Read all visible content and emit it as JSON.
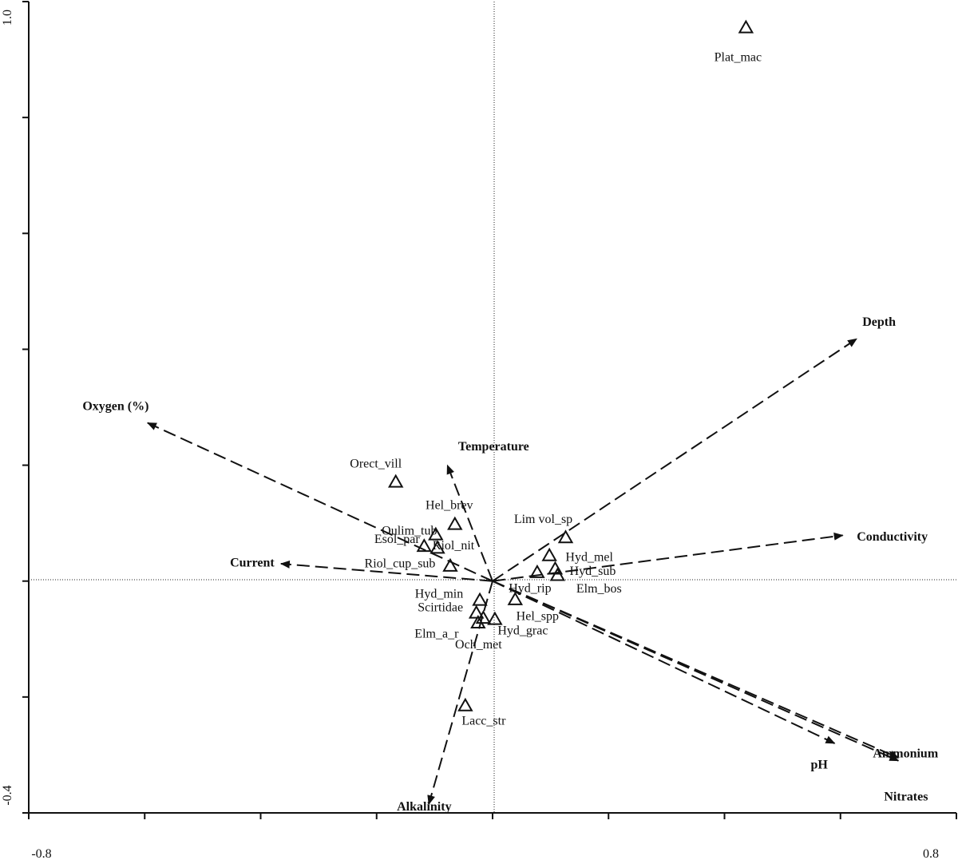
{
  "chart_data": {
    "type": "scatter",
    "title": "",
    "xlabel": "",
    "ylabel": "",
    "xlim": [
      -0.8,
      0.8
    ],
    "ylim": [
      -0.4,
      1.0
    ],
    "x_tick_labels": [
      "-0.8",
      "0.8"
    ],
    "y_tick_labels": [
      "1.0",
      "-0.4"
    ],
    "grid": false,
    "reference_lines": {
      "x": 0,
      "y": 0,
      "style": "dotted"
    },
    "species": [
      {
        "name": "Plat_mac",
        "x": 0.437,
        "y": 0.955
      },
      {
        "name": "Orect_vill",
        "x": -0.167,
        "y": 0.171
      },
      {
        "name": "Hel_brev",
        "x": -0.065,
        "y": 0.098
      },
      {
        "name": "Oulim_tub",
        "x": -0.098,
        "y": 0.08
      },
      {
        "name": "Esol_par",
        "x": -0.118,
        "y": 0.06
      },
      {
        "name": "Riol_nit",
        "x": -0.095,
        "y": 0.057
      },
      {
        "name": "Riol_cup_sub",
        "x": -0.073,
        "y": 0.026
      },
      {
        "name": "Lim vol_sp",
        "x": 0.126,
        "y": 0.075
      },
      {
        "name": "Hyd_mel",
        "x": 0.098,
        "y": 0.044
      },
      {
        "name": "Hyd_sub",
        "x": 0.108,
        "y": 0.021
      },
      {
        "name": "Hyd_rip",
        "x": 0.077,
        "y": 0.015
      },
      {
        "name": "Elm_bos",
        "x": 0.112,
        "y": 0.01
      },
      {
        "name": "Hel_spp",
        "x": 0.039,
        "y": -0.032
      },
      {
        "name": "Hyd_min",
        "x": -0.022,
        "y": -0.033
      },
      {
        "name": "Scirtidae",
        "x": -0.028,
        "y": -0.055
      },
      {
        "name": "Elm_a_r",
        "x": -0.025,
        "y": -0.072
      },
      {
        "name": "Hyd_grac",
        "x": 0.004,
        "y": -0.066
      },
      {
        "name": "Och_met",
        "x": -0.016,
        "y": -0.064
      },
      {
        "name": "Lacc_str",
        "x": -0.047,
        "y": -0.215
      }
    ],
    "environment": [
      {
        "name": "Depth",
        "x": 0.628,
        "y": 0.418
      },
      {
        "name": "Oxygen (%)",
        "x": -0.595,
        "y": 0.273
      },
      {
        "name": "Temperature",
        "x": -0.078,
        "y": 0.2
      },
      {
        "name": "Conductivity",
        "x": 0.604,
        "y": 0.079
      },
      {
        "name": "Current",
        "x": -0.365,
        "y": 0.03
      },
      {
        "name": "Ammonium",
        "x": 0.7,
        "y": -0.305
      },
      {
        "name": "pH",
        "x": 0.59,
        "y": -0.28
      },
      {
        "name": "Nitrates",
        "x": 0.7,
        "y": -0.31
      },
      {
        "name": "Alkalinity",
        "x": -0.11,
        "y": -0.385
      }
    ]
  }
}
